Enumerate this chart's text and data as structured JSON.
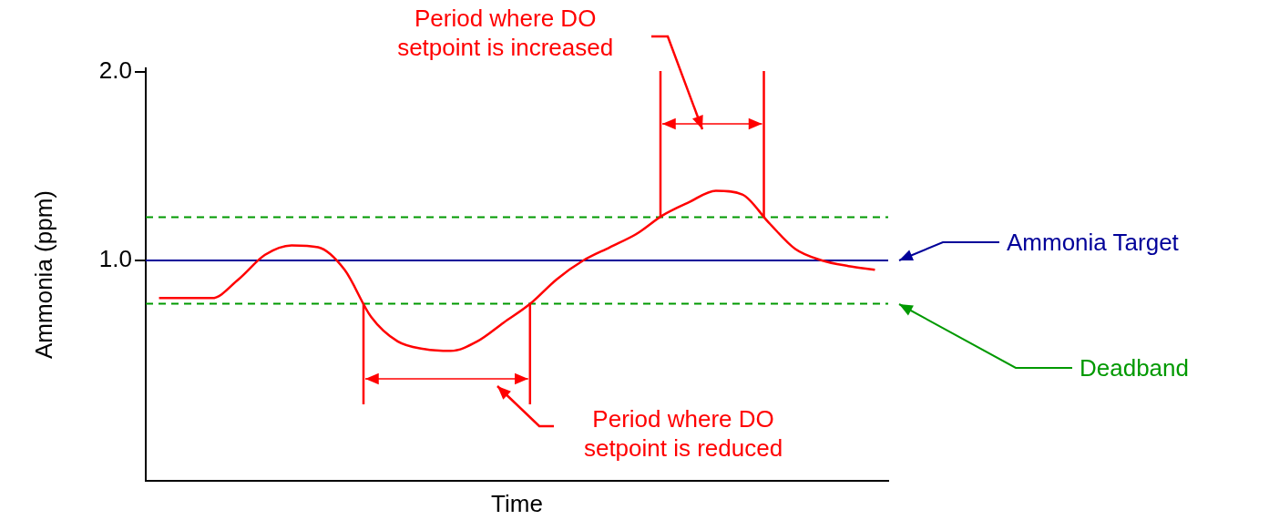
{
  "chart_data": {
    "type": "line",
    "xlabel": "Time",
    "ylabel": "Ammonia (ppm)",
    "categories": [
      null,
      null,
      null,
      null,
      null,
      null,
      null,
      null,
      null,
      null,
      null,
      null,
      null,
      null,
      null,
      null,
      null,
      null,
      null,
      null,
      null,
      null,
      null,
      null,
      null,
      null,
      null,
      null
    ],
    "series": [
      {
        "color": "#ff0000",
        "values": [
          0.8,
          0.8,
          0.8,
          0.9,
          1.03,
          1.08,
          1.07,
          0.95,
          0.7,
          0.57,
          0.53,
          0.52,
          0.57,
          0.67,
          0.77,
          0.9,
          1.0,
          1.07,
          1.14,
          1.24,
          1.31,
          1.37,
          1.35,
          1.2,
          1.06,
          1.0,
          0.97,
          0.95
        ]
      }
    ],
    "ylim": [
      -0.17,
      2.02
    ],
    "yticks": [
      {
        "value": 1,
        "label": "1.0"
      },
      {
        "value": 2,
        "label": "2.0"
      }
    ],
    "marker": "none",
    "line_style": "solid",
    "ref_lines": [
      {
        "axis": "y",
        "value": 1,
        "label": "Ammonia Target",
        "color": "#000099",
        "line_style": "solid"
      },
      {
        "axis": "y",
        "value": 1.23,
        "color": "#009900",
        "line_style": "dashed"
      },
      {
        "axis": "y",
        "value": 0.77,
        "label": "Deadband",
        "color": "#009900",
        "line_style": "dashed"
      }
    ],
    "annotations": [
      "Period where DO setpoint is increased",
      "Period where DO setpoint is reduced"
    ]
  }
}
